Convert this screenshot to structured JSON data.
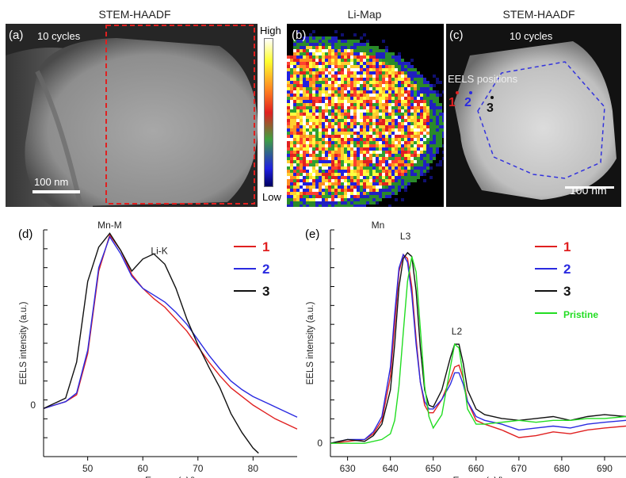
{
  "panel_a": {
    "title": "STEM-HAADF",
    "label": "(a)",
    "cycles": "10 cycles",
    "scale": "100 nm"
  },
  "panel_b": {
    "title": "Li-Map",
    "label": "(b)",
    "cbar_high": "High",
    "cbar_low": "Low"
  },
  "panel_c": {
    "title": "STEM-HAADF",
    "label": "(c)",
    "cycles": "10 cycles",
    "eels_label": "EELS positions",
    "pos": [
      "1",
      "2",
      "3"
    ],
    "scale": "100 nm"
  },
  "chart_data": [
    {
      "type": "line",
      "panel_label": "(d)",
      "xlabel": "Energy (eV)",
      "ylabel": "EELS intensity (a.u.)",
      "xlim": [
        42,
        88
      ],
      "ylim": [
        -0.3,
        1.02
      ],
      "xticks": [
        50,
        60,
        70,
        80
      ],
      "yticks": [
        0
      ],
      "annotations": [
        {
          "text": "Mn-M",
          "x": 54,
          "y": 1.03
        },
        {
          "text": "Li-K",
          "x": 63,
          "y": 0.88
        }
      ],
      "colors": {
        "1": "#e02020",
        "2": "#2a2ae0",
        "3": "#111111"
      },
      "series": [
        {
          "name": "1",
          "x": [
            42,
            44,
            46,
            48,
            50,
            52,
            54,
            56,
            58,
            60,
            62,
            64,
            66,
            68,
            70,
            72,
            74,
            76,
            78,
            80,
            82,
            84,
            86,
            88
          ],
          "y": [
            -0.02,
            0.0,
            0.02,
            0.06,
            0.3,
            0.78,
            0.99,
            0.9,
            0.76,
            0.68,
            0.62,
            0.57,
            0.5,
            0.43,
            0.34,
            0.25,
            0.17,
            0.1,
            0.05,
            0.0,
            -0.04,
            -0.08,
            -0.11,
            -0.14
          ]
        },
        {
          "name": "2",
          "x": [
            42,
            44,
            46,
            48,
            50,
            52,
            54,
            56,
            58,
            60,
            62,
            64,
            66,
            68,
            70,
            72,
            74,
            76,
            78,
            80,
            82,
            84,
            86,
            88
          ],
          "y": [
            -0.02,
            0.0,
            0.02,
            0.07,
            0.32,
            0.8,
            0.98,
            0.88,
            0.75,
            0.68,
            0.64,
            0.6,
            0.54,
            0.47,
            0.38,
            0.29,
            0.21,
            0.14,
            0.09,
            0.05,
            0.02,
            -0.01,
            -0.04,
            -0.07
          ]
        },
        {
          "name": "3",
          "x": [
            42,
            44,
            46,
            48,
            50,
            52,
            54,
            56,
            58,
            60,
            62,
            64,
            66,
            68,
            70,
            72,
            74,
            76,
            78,
            80,
            81
          ],
          "y": [
            -0.02,
            0.01,
            0.04,
            0.25,
            0.72,
            0.92,
            1.0,
            0.9,
            0.78,
            0.85,
            0.88,
            0.82,
            0.68,
            0.5,
            0.35,
            0.22,
            0.1,
            -0.05,
            -0.16,
            -0.25,
            -0.28
          ]
        }
      ]
    },
    {
      "type": "line",
      "panel_label": "(e)",
      "title": "Mn",
      "xlabel": "Energy (eV)",
      "ylabel": "EELS intensity (a.u.)",
      "xlim": [
        626,
        695
      ],
      "ylim": [
        -0.07,
        1.12
      ],
      "xticks": [
        630,
        640,
        650,
        660,
        670,
        680,
        690
      ],
      "yticks": [
        0
      ],
      "annotations": [
        {
          "text": "L3",
          "x": 643.5,
          "y": 1.07
        },
        {
          "text": "L2",
          "x": 655.5,
          "y": 0.57
        }
      ],
      "colors": {
        "1": "#e02020",
        "2": "#2a2ae0",
        "3": "#111111",
        "Pristine": "#22dd22"
      },
      "series": [
        {
          "name": "1",
          "x": [
            626,
            630,
            634,
            636,
            638,
            640,
            641,
            642,
            643,
            644,
            645,
            646,
            647,
            648,
            649,
            650,
            652,
            654,
            655,
            656,
            657,
            658,
            660,
            662,
            666,
            670,
            674,
            678,
            682,
            686,
            690,
            695
          ],
          "y": [
            0,
            0.01,
            0.02,
            0.05,
            0.12,
            0.35,
            0.62,
            0.9,
            0.99,
            0.97,
            0.82,
            0.55,
            0.32,
            0.2,
            0.16,
            0.16,
            0.23,
            0.34,
            0.4,
            0.41,
            0.34,
            0.22,
            0.12,
            0.1,
            0.07,
            0.03,
            0.04,
            0.06,
            0.05,
            0.07,
            0.08,
            0.09
          ]
        },
        {
          "name": "2",
          "x": [
            626,
            630,
            634,
            636,
            638,
            640,
            641,
            642,
            643,
            644,
            645,
            646,
            647,
            648,
            649,
            650,
            652,
            654,
            655,
            656,
            657,
            658,
            660,
            662,
            666,
            670,
            674,
            678,
            682,
            686,
            690,
            695
          ],
          "y": [
            0,
            0.02,
            0.02,
            0.06,
            0.14,
            0.4,
            0.68,
            0.92,
            0.99,
            0.95,
            0.78,
            0.52,
            0.32,
            0.22,
            0.18,
            0.18,
            0.23,
            0.31,
            0.37,
            0.37,
            0.31,
            0.22,
            0.14,
            0.12,
            0.1,
            0.07,
            0.08,
            0.09,
            0.08,
            0.1,
            0.11,
            0.12
          ]
        },
        {
          "name": "3",
          "x": [
            626,
            630,
            634,
            636,
            638,
            640,
            641,
            642,
            643,
            644,
            645,
            646,
            647,
            648,
            649,
            650,
            652,
            654,
            655,
            656,
            657,
            658,
            660,
            662,
            666,
            670,
            674,
            678,
            682,
            686,
            690,
            695
          ],
          "y": [
            0,
            0.02,
            0.01,
            0.04,
            0.1,
            0.28,
            0.52,
            0.82,
            0.97,
            1.0,
            0.98,
            0.8,
            0.5,
            0.28,
            0.2,
            0.19,
            0.28,
            0.45,
            0.52,
            0.52,
            0.42,
            0.28,
            0.18,
            0.15,
            0.13,
            0.12,
            0.13,
            0.14,
            0.12,
            0.14,
            0.15,
            0.14
          ]
        },
        {
          "name": "Pristine",
          "x": [
            626,
            634,
            638,
            640,
            641,
            642,
            643,
            644,
            645,
            646,
            647,
            648,
            649,
            650,
            652,
            654,
            655,
            656,
            657,
            658,
            660,
            662,
            666,
            670,
            674,
            678,
            682,
            686,
            690,
            695
          ],
          "y": [
            0,
            0.0,
            0.02,
            0.05,
            0.12,
            0.3,
            0.58,
            0.85,
            0.98,
            0.9,
            0.6,
            0.3,
            0.14,
            0.08,
            0.15,
            0.4,
            0.52,
            0.5,
            0.35,
            0.18,
            0.1,
            0.1,
            0.11,
            0.12,
            0.11,
            0.12,
            0.12,
            0.13,
            0.13,
            0.14
          ]
        }
      ]
    }
  ]
}
